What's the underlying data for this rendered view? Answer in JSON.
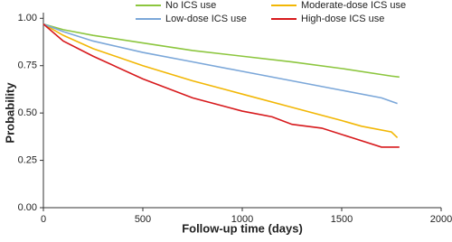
{
  "chart_data": {
    "type": "line",
    "x_label": "Follow-up time (days)",
    "y_label": "Probability",
    "xlim": [
      0,
      2000
    ],
    "xticks": [
      0,
      500,
      1000,
      1500,
      2000
    ],
    "ylim": [
      0,
      1.03
    ],
    "yticks": [
      {
        "value": 0,
        "label": "0.00"
      },
      {
        "value": 0.25,
        "label": "0.25"
      },
      {
        "value": 0.5,
        "label": "0.50"
      },
      {
        "value": 0.75,
        "label": "0.75"
      },
      {
        "value": 1,
        "label": "1.00"
      }
    ],
    "legend": "top",
    "series": [
      {
        "name": "No ICS use",
        "color": "#8cc63e",
        "x": [
          0,
          100,
          250,
          500,
          750,
          1000,
          1250,
          1500,
          1750,
          1790
        ],
        "values": [
          0.97,
          0.94,
          0.91,
          0.87,
          0.83,
          0.8,
          0.77,
          0.735,
          0.695,
          0.69
        ]
      },
      {
        "name": "Moderate-dose ICS use",
        "color": "#f2b705",
        "x": [
          0,
          100,
          250,
          500,
          750,
          1000,
          1250,
          1500,
          1600,
          1750,
          1780
        ],
        "values": [
          0.97,
          0.91,
          0.84,
          0.75,
          0.67,
          0.6,
          0.53,
          0.46,
          0.43,
          0.4,
          0.37
        ]
      },
      {
        "name": "Low-dose ICS use",
        "color": "#7ba7d9",
        "x": [
          0,
          100,
          250,
          500,
          750,
          1000,
          1250,
          1500,
          1700,
          1780
        ],
        "values": [
          0.97,
          0.93,
          0.88,
          0.82,
          0.77,
          0.72,
          0.67,
          0.62,
          0.58,
          0.55
        ]
      },
      {
        "name": "High-dose ICS use",
        "color": "#d7191c",
        "x": [
          0,
          100,
          250,
          500,
          750,
          1000,
          1150,
          1250,
          1400,
          1550,
          1700,
          1790
        ],
        "values": [
          0.97,
          0.88,
          0.8,
          0.68,
          0.58,
          0.51,
          0.48,
          0.44,
          0.42,
          0.37,
          0.32,
          0.32
        ]
      }
    ]
  }
}
